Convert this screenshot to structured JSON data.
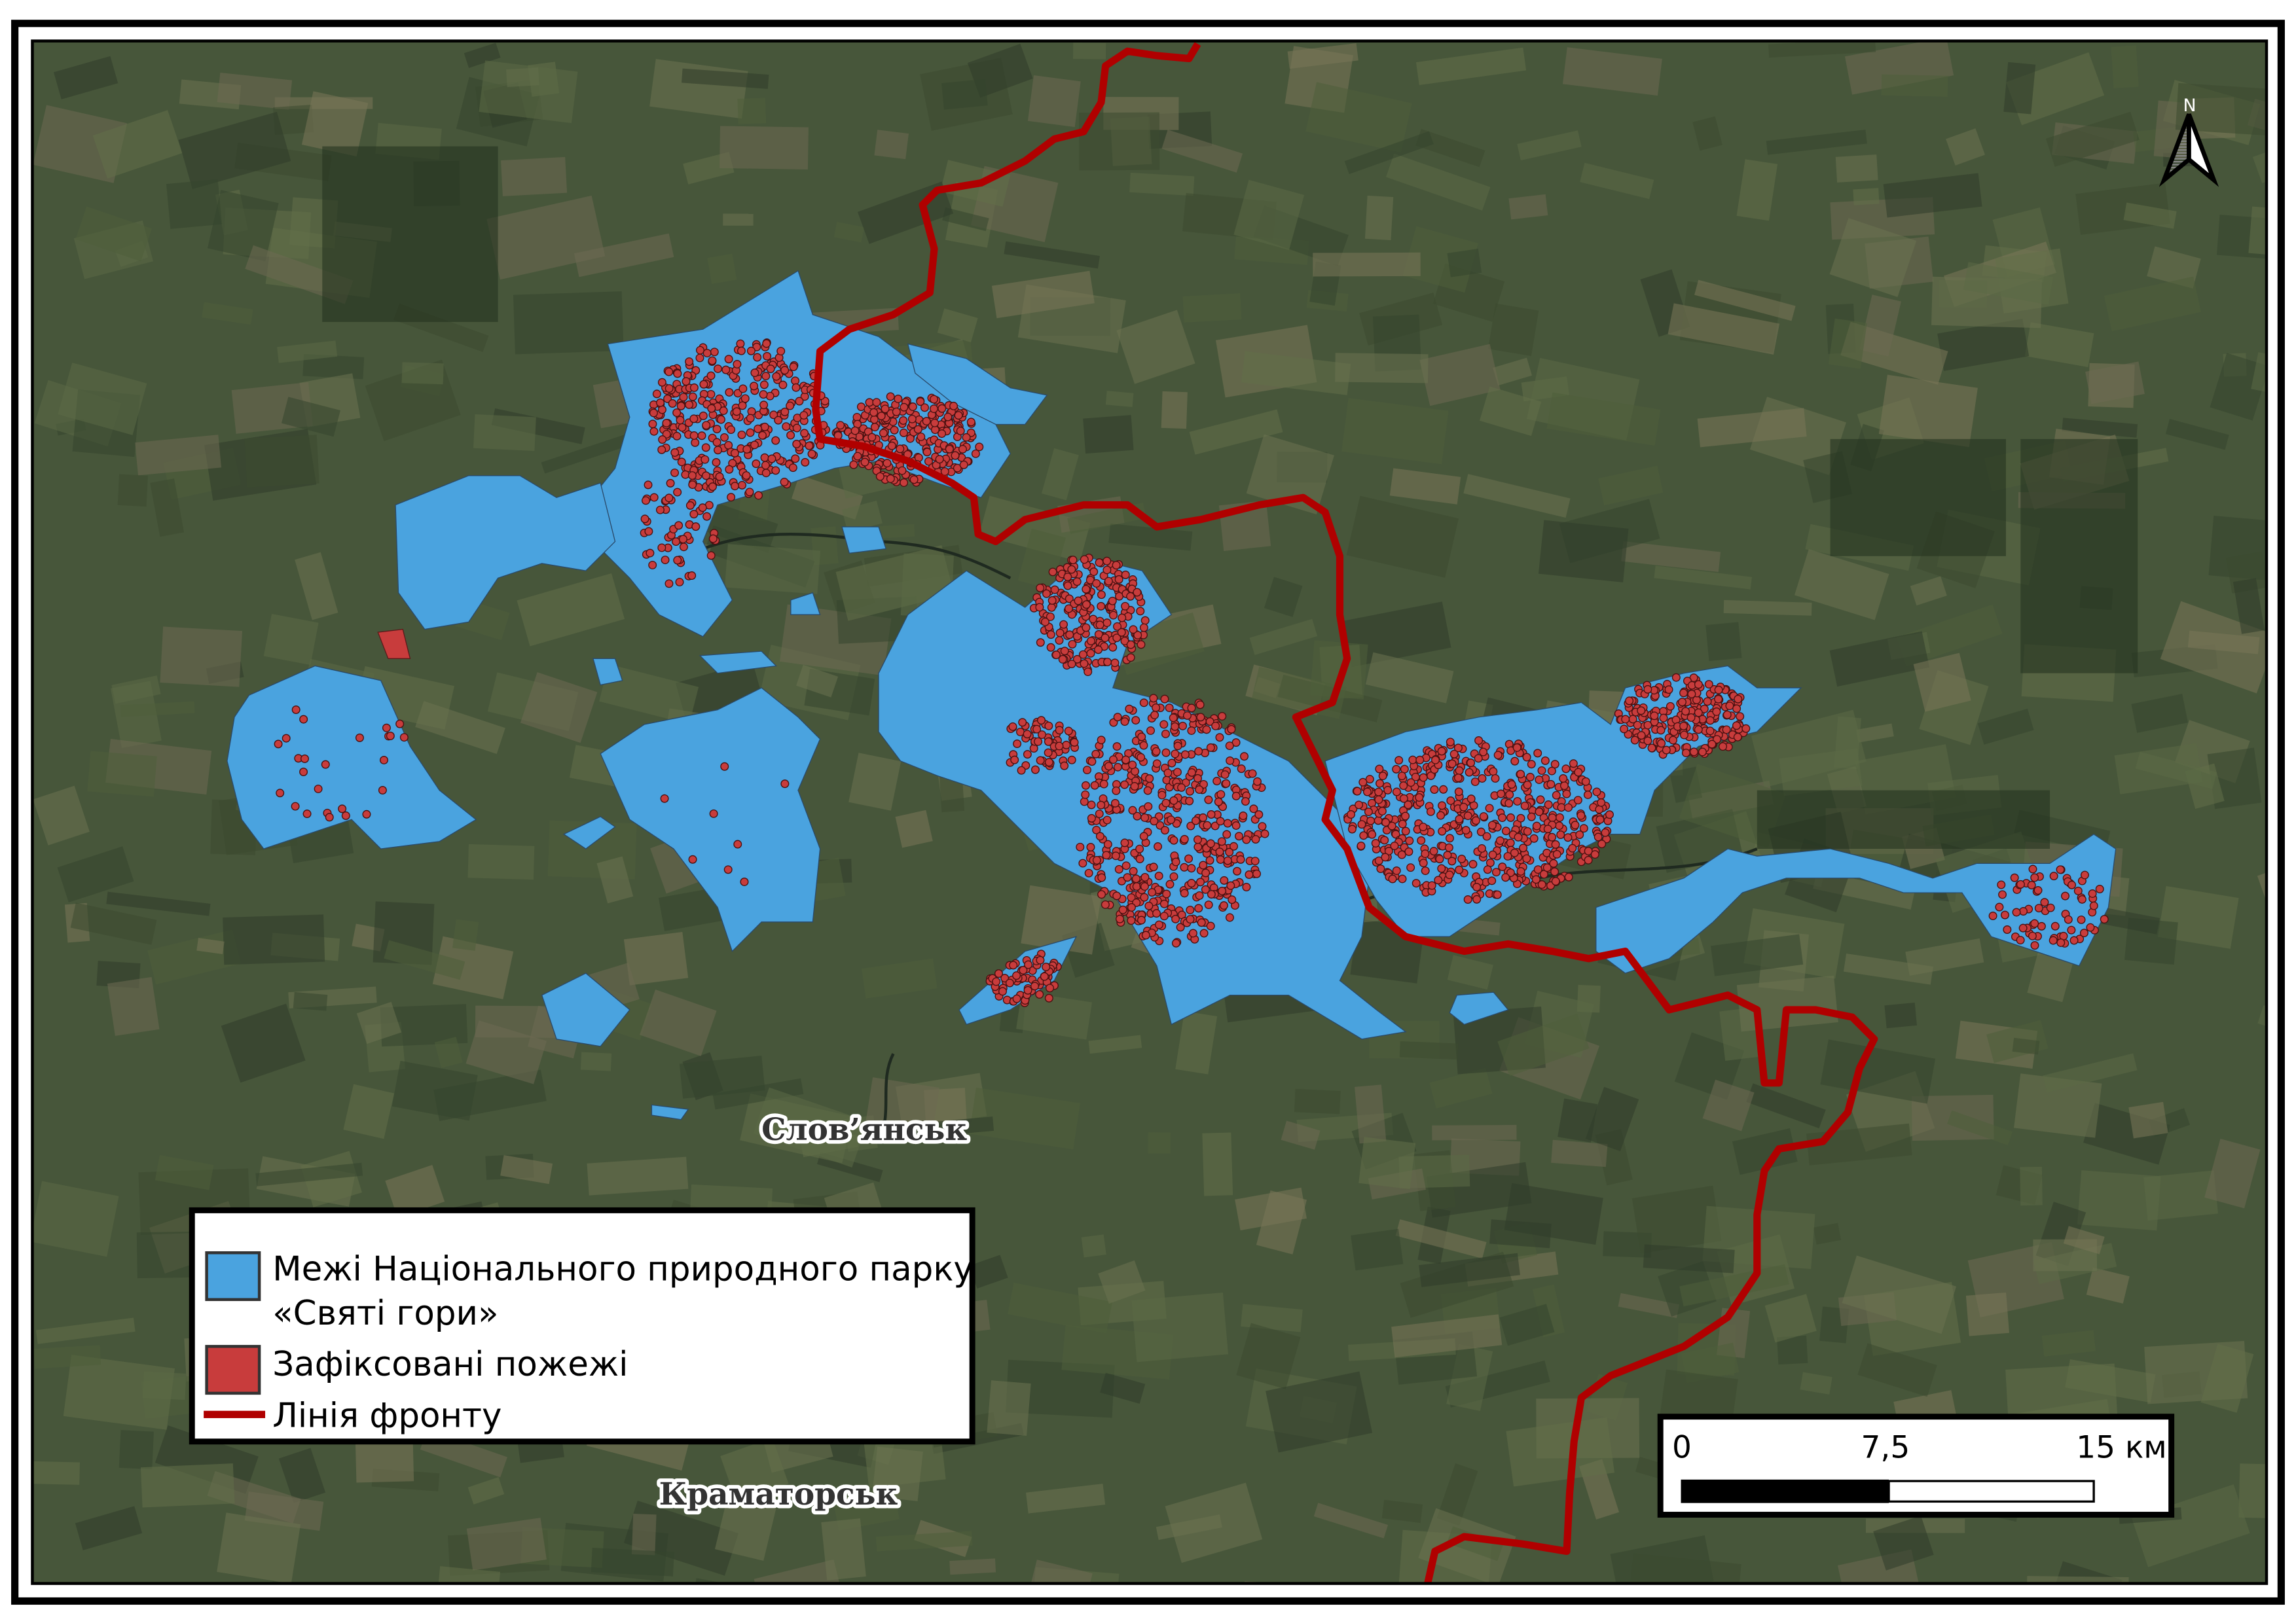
{
  "colors": {
    "park": "#4aa3df",
    "fire": "#c83c3c",
    "front_line": "#b00000",
    "background": "#47563a"
  },
  "north_arrow": {
    "label": "N",
    "icon": "north-arrow-icon"
  },
  "cities": [
    {
      "name": "Слов’янськ"
    },
    {
      "name": "Краматорськ"
    }
  ],
  "legend": {
    "items": [
      {
        "label_line1": "Межі Національного природного парку",
        "label_line2": "«Святі гори»",
        "symbol": "blue-square"
      },
      {
        "label_line1": "Зафіксовані пожежі",
        "symbol": "red-square"
      },
      {
        "label_line1": "Лінія фронту",
        "symbol": "red-line"
      }
    ]
  },
  "scale_bar": {
    "labels": [
      "0",
      "7,5",
      "15 км"
    ]
  }
}
